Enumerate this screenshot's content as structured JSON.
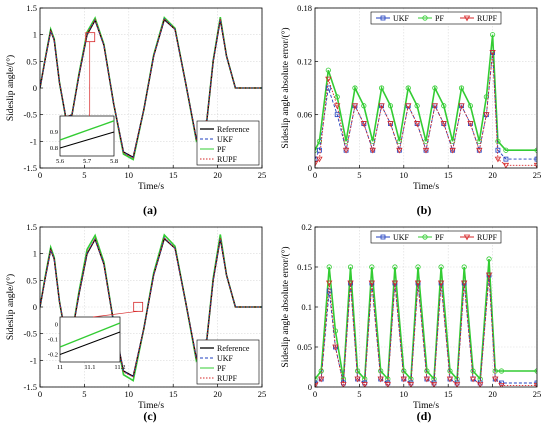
{
  "chart_data": [
    {
      "panel_label": "(a)",
      "type": "line",
      "xlabel": "Time/s",
      "ylabel": "Sideslip angle/(°)",
      "xlim": [
        0,
        25
      ],
      "ylim": [
        -1.5,
        1.5
      ],
      "xticks": [
        "0",
        "5",
        "10",
        "15",
        "20",
        "25"
      ],
      "yticks": [
        "-1.5",
        "-1",
        "-0.5",
        "0",
        "0.5",
        "1",
        "1.5"
      ],
      "legend": {
        "placement": "bottom-right",
        "entries": [
          "Reference",
          "UKF",
          "PF",
          "RUPF"
        ]
      },
      "series": [
        {
          "name": "Reference",
          "color": "#000000",
          "x": [
            0,
            0.6,
            1.2,
            1.6,
            2.2,
            2.9,
            3.6,
            4.4,
            5.3,
            6.2,
            7.2,
            8.3,
            9.4,
            10.5,
            11.7,
            12.8,
            14.0,
            15.2,
            16.4,
            17.6,
            18.8,
            19.5,
            20.3,
            21.0,
            22.0,
            25.0
          ],
          "y": [
            0,
            0.55,
            1.07,
            0.9,
            0.1,
            -0.55,
            -0.5,
            0.25,
            1.0,
            1.27,
            0.8,
            -0.3,
            -1.2,
            -1.3,
            -0.4,
            0.6,
            1.28,
            1.1,
            0.1,
            -0.95,
            -0.6,
            0.5,
            1.28,
            0.6,
            0,
            0
          ]
        },
        {
          "name": "UKF",
          "color": "#1f3fbf",
          "x": [
            0,
            0.6,
            1.2,
            1.6,
            2.2,
            2.9,
            3.6,
            4.4,
            5.3,
            6.2,
            7.2,
            8.3,
            9.4,
            10.5,
            11.7,
            12.8,
            14.0,
            15.2,
            16.4,
            17.6,
            18.8,
            19.5,
            20.3,
            21.0,
            22.0,
            25.0
          ],
          "y": [
            0,
            0.55,
            1.08,
            0.9,
            0.1,
            -0.55,
            -0.5,
            0.26,
            1.02,
            1.28,
            0.8,
            -0.3,
            -1.21,
            -1.31,
            -0.4,
            0.6,
            1.3,
            1.1,
            0.1,
            -0.96,
            -0.6,
            0.5,
            1.3,
            0.6,
            0,
            0
          ]
        },
        {
          "name": "PF",
          "color": "#33cc33",
          "x": [
            0,
            0.6,
            1.2,
            1.6,
            2.2,
            2.9,
            3.6,
            4.4,
            5.3,
            6.2,
            7.2,
            8.3,
            9.4,
            10.5,
            11.7,
            12.8,
            14.0,
            15.2,
            16.4,
            17.6,
            18.8,
            19.5,
            20.3,
            21.0,
            22.0,
            25.0
          ],
          "y": [
            0,
            0.56,
            1.1,
            0.92,
            0.1,
            -0.56,
            -0.5,
            0.28,
            1.05,
            1.31,
            0.82,
            -0.3,
            -1.24,
            -1.34,
            -0.4,
            0.62,
            1.32,
            1.12,
            0.1,
            -0.98,
            -0.6,
            0.52,
            1.33,
            0.6,
            0,
            0
          ]
        },
        {
          "name": "RUPF",
          "color": "#d62728",
          "x": [
            0,
            0.6,
            1.2,
            1.6,
            2.2,
            2.9,
            3.6,
            4.4,
            5.3,
            6.2,
            7.2,
            8.3,
            9.4,
            10.5,
            11.7,
            12.8,
            14.0,
            15.2,
            16.4,
            17.6,
            18.8,
            19.5,
            20.3,
            21.0,
            22.0,
            25.0
          ],
          "y": [
            0,
            0.55,
            1.08,
            0.9,
            0.1,
            -0.55,
            -0.5,
            0.26,
            1.02,
            1.28,
            0.8,
            -0.3,
            -1.22,
            -1.31,
            -0.4,
            0.6,
            1.3,
            1.1,
            0.1,
            -0.96,
            -0.6,
            0.5,
            1.3,
            0.6,
            0,
            0
          ]
        }
      ],
      "inset": {
        "xlim": [
          5.6,
          5.8
        ],
        "ylim": [
          0.75,
          1.0
        ],
        "xticks": [
          "5.6",
          "5.7",
          "5.8"
        ],
        "yticks": [
          "0.8",
          "0.9"
        ],
        "series": [
          {
            "name": "Reference",
            "color": "#000000",
            "x": [
              5.6,
              5.8
            ],
            "y": [
              0.8,
              0.9
            ]
          },
          {
            "name": "PF",
            "color": "#33cc33",
            "x": [
              5.6,
              5.65,
              5.7,
              5.75,
              5.8
            ],
            "y": [
              0.85,
              0.88,
              0.91,
              0.94,
              0.97
            ]
          }
        ]
      }
    },
    {
      "panel_label": "(b)",
      "type": "line",
      "xlabel": "Time/s",
      "ylabel": "Sideslip angle absolute error/(°)",
      "xlim": [
        0,
        25
      ],
      "ylim": [
        0,
        0.18
      ],
      "xticks": [
        "0",
        "5",
        "10",
        "15",
        "20",
        "25"
      ],
      "yticks": [
        "0",
        "0.06",
        "0.12",
        "0.18"
      ],
      "legend": {
        "placement": "top",
        "entries": [
          "UKF",
          "PF",
          "RUPF"
        ]
      },
      "series": [
        {
          "name": "UKF",
          "color": "#1f3fbf",
          "x": [
            0,
            0.5,
            1.5,
            2.5,
            3.5,
            4.5,
            5.5,
            6.5,
            7.5,
            8.5,
            9.5,
            10.5,
            11.5,
            12.5,
            13.5,
            14.5,
            15.5,
            16.5,
            17.5,
            18.5,
            19.3,
            20.0,
            20.6,
            21.5,
            25.0
          ],
          "y": [
            0.01,
            0.02,
            0.09,
            0.06,
            0.02,
            0.07,
            0.05,
            0.02,
            0.07,
            0.05,
            0.02,
            0.07,
            0.05,
            0.02,
            0.07,
            0.05,
            0.02,
            0.07,
            0.05,
            0.02,
            0.06,
            0.13,
            0.02,
            0.01,
            0.01
          ]
        },
        {
          "name": "PF",
          "color": "#33cc33",
          "x": [
            0,
            0.5,
            1.5,
            2.5,
            3.5,
            4.5,
            5.5,
            6.5,
            7.5,
            8.5,
            9.5,
            10.5,
            11.5,
            12.5,
            13.5,
            14.5,
            15.5,
            16.5,
            17.5,
            18.5,
            19.3,
            20.0,
            20.6,
            21.5,
            25.0
          ],
          "y": [
            0.02,
            0.03,
            0.11,
            0.08,
            0.03,
            0.09,
            0.07,
            0.03,
            0.09,
            0.07,
            0.03,
            0.09,
            0.07,
            0.03,
            0.09,
            0.07,
            0.03,
            0.09,
            0.07,
            0.03,
            0.08,
            0.15,
            0.03,
            0.02,
            0.02
          ]
        },
        {
          "name": "RUPF",
          "color": "#d62728",
          "x": [
            0,
            0.5,
            1.5,
            2.5,
            3.5,
            4.5,
            5.5,
            6.5,
            7.5,
            8.5,
            9.5,
            10.5,
            11.5,
            12.5,
            13.5,
            14.5,
            15.5,
            16.5,
            17.5,
            18.5,
            19.3,
            20.0,
            20.6,
            21.5,
            25.0
          ],
          "y": [
            0.005,
            0.01,
            0.1,
            0.07,
            0.02,
            0.07,
            0.05,
            0.02,
            0.07,
            0.05,
            0.02,
            0.07,
            0.05,
            0.02,
            0.07,
            0.05,
            0.02,
            0.07,
            0.05,
            0.02,
            0.06,
            0.13,
            0.01,
            0.003,
            0.003
          ]
        }
      ]
    },
    {
      "panel_label": "(c)",
      "type": "line",
      "xlabel": "Time/s",
      "ylabel": "Sideslip angle/(°)",
      "xlim": [
        0,
        25
      ],
      "ylim": [
        -1.5,
        1.5
      ],
      "xticks": [
        "0",
        "5",
        "10",
        "15",
        "20",
        "25"
      ],
      "yticks": [
        "-1.5",
        "-1",
        "-0.5",
        "0",
        "0.5",
        "1",
        "1.5"
      ],
      "legend": {
        "placement": "bottom-right",
        "entries": [
          "Reference",
          "UKF",
          "PF",
          "RUPF"
        ]
      },
      "series": [
        {
          "name": "Reference",
          "color": "#000000",
          "x": [
            0,
            0.6,
            1.2,
            1.6,
            2.2,
            2.9,
            3.6,
            4.4,
            5.3,
            6.2,
            7.2,
            8.3,
            9.4,
            10.5,
            11.7,
            12.8,
            14.0,
            15.2,
            16.4,
            17.6,
            18.8,
            19.5,
            20.3,
            21.0,
            22.0,
            25.0
          ],
          "y": [
            0,
            0.55,
            1.07,
            0.9,
            0.1,
            -0.55,
            -0.5,
            0.25,
            1.0,
            1.27,
            0.8,
            -0.3,
            -1.2,
            -1.3,
            -0.4,
            0.6,
            1.28,
            1.1,
            0.1,
            -0.95,
            -0.6,
            0.5,
            1.28,
            0.6,
            0,
            0
          ]
        },
        {
          "name": "UKF",
          "color": "#1f3fbf",
          "x": [
            0,
            0.6,
            1.2,
            1.6,
            2.2,
            2.9,
            3.6,
            4.4,
            5.3,
            6.2,
            7.2,
            8.3,
            9.4,
            10.5,
            11.7,
            12.8,
            14.0,
            15.2,
            16.4,
            17.6,
            18.8,
            19.5,
            20.3,
            21.0,
            22.0,
            25.0
          ],
          "y": [
            0,
            0.55,
            1.08,
            0.9,
            0.1,
            -0.55,
            -0.5,
            0.26,
            1.02,
            1.28,
            0.8,
            -0.3,
            -1.21,
            -1.31,
            -0.4,
            0.6,
            1.3,
            1.1,
            0.1,
            -0.96,
            -0.6,
            0.5,
            1.3,
            0.6,
            0,
            0
          ]
        },
        {
          "name": "PF",
          "color": "#33cc33",
          "x": [
            0,
            0.6,
            1.2,
            1.6,
            2.2,
            2.9,
            3.6,
            4.4,
            5.3,
            6.2,
            7.2,
            8.3,
            9.4,
            10.5,
            11.7,
            12.8,
            14.0,
            15.2,
            16.4,
            17.6,
            18.8,
            19.5,
            20.3,
            21.0,
            22.0,
            25.0
          ],
          "y": [
            0,
            0.58,
            1.12,
            0.93,
            0.1,
            -0.58,
            -0.5,
            0.3,
            1.08,
            1.34,
            0.84,
            -0.3,
            -1.27,
            -1.38,
            -0.4,
            0.64,
            1.35,
            1.14,
            0.1,
            -1.0,
            -0.6,
            0.54,
            1.36,
            0.6,
            0,
            0
          ]
        },
        {
          "name": "RUPF",
          "color": "#d62728",
          "x": [
            0,
            0.6,
            1.2,
            1.6,
            2.2,
            2.9,
            3.6,
            4.4,
            5.3,
            6.2,
            7.2,
            8.3,
            9.4,
            10.5,
            11.7,
            12.8,
            14.0,
            15.2,
            16.4,
            17.6,
            18.8,
            19.5,
            20.3,
            21.0,
            22.0,
            25.0
          ],
          "y": [
            0,
            0.55,
            1.08,
            0.9,
            0.1,
            -0.55,
            -0.5,
            0.26,
            1.02,
            1.28,
            0.8,
            -0.3,
            -1.22,
            -1.31,
            -0.4,
            0.6,
            1.3,
            1.1,
            0.1,
            -0.96,
            -0.6,
            0.5,
            1.3,
            0.6,
            0,
            0
          ]
        }
      ],
      "inset": {
        "xlim": [
          11,
          11.2
        ],
        "ylim": [
          -0.25,
          0.05
        ],
        "xticks": [
          "11",
          "11.1",
          "11.2"
        ],
        "yticks": [
          "-0.2",
          "-0.1",
          "0"
        ],
        "series": [
          {
            "name": "Reference",
            "color": "#000000",
            "x": [
              11,
              11.2
            ],
            "y": [
              -0.2,
              -0.05
            ]
          },
          {
            "name": "PF",
            "color": "#33cc33",
            "x": [
              11,
              11.05,
              11.1,
              11.15,
              11.2
            ],
            "y": [
              -0.15,
              -0.11,
              -0.07,
              -0.03,
              0.01
            ]
          }
        ]
      }
    },
    {
      "panel_label": "(d)",
      "type": "line",
      "xlabel": "Time/s",
      "ylabel": "Sideslip angle absolute error/(°)",
      "xlim": [
        0,
        25
      ],
      "ylim": [
        0,
        0.2
      ],
      "xticks": [
        "0",
        "5",
        "10",
        "15",
        "20",
        "25"
      ],
      "yticks": [
        "0",
        "0.05",
        "0.1",
        "0.15",
        "0.2"
      ],
      "legend": {
        "placement": "top",
        "entries": [
          "UKF",
          "PF",
          "RUPF"
        ]
      },
      "series": [
        {
          "name": "UKF",
          "color": "#1f3fbf",
          "x": [
            0,
            0.7,
            1.6,
            2.3,
            3.2,
            4.0,
            4.8,
            5.6,
            6.4,
            7.4,
            8.2,
            9.0,
            10.0,
            10.8,
            11.6,
            12.6,
            13.4,
            14.2,
            15.2,
            16.0,
            16.8,
            17.8,
            18.6,
            19.6,
            20.3,
            21.0,
            25.0
          ],
          "y": [
            0.005,
            0.01,
            0.12,
            0.05,
            0.005,
            0.13,
            0.01,
            0.005,
            0.13,
            0.01,
            0.005,
            0.13,
            0.01,
            0.005,
            0.13,
            0.01,
            0.005,
            0.13,
            0.01,
            0.005,
            0.13,
            0.01,
            0.005,
            0.14,
            0.01,
            0.005,
            0.005
          ]
        },
        {
          "name": "PF",
          "color": "#33cc33",
          "x": [
            0,
            0.7,
            1.6,
            2.3,
            3.2,
            4.0,
            4.8,
            5.6,
            6.4,
            7.4,
            8.2,
            9.0,
            10.0,
            10.8,
            11.6,
            12.6,
            13.4,
            14.2,
            15.2,
            16.0,
            16.8,
            17.8,
            18.6,
            19.6,
            20.3,
            21.0,
            25.0
          ],
          "y": [
            0.01,
            0.02,
            0.15,
            0.07,
            0.01,
            0.15,
            0.02,
            0.01,
            0.15,
            0.02,
            0.01,
            0.15,
            0.02,
            0.01,
            0.15,
            0.02,
            0.01,
            0.15,
            0.02,
            0.01,
            0.15,
            0.02,
            0.01,
            0.16,
            0.02,
            0.02,
            0.02
          ]
        },
        {
          "name": "RUPF",
          "color": "#d62728",
          "x": [
            0,
            0.7,
            1.6,
            2.3,
            3.2,
            4.0,
            4.8,
            5.6,
            6.4,
            7.4,
            8.2,
            9.0,
            10.0,
            10.8,
            11.6,
            12.6,
            13.4,
            14.2,
            15.2,
            16.0,
            16.8,
            17.8,
            18.6,
            19.6,
            20.3,
            21.0,
            25.0
          ],
          "y": [
            0.002,
            0.01,
            0.13,
            0.05,
            0.003,
            0.13,
            0.01,
            0.003,
            0.13,
            0.01,
            0.003,
            0.13,
            0.01,
            0.003,
            0.13,
            0.01,
            0.003,
            0.13,
            0.01,
            0.003,
            0.13,
            0.01,
            0.003,
            0.14,
            0.01,
            0.002,
            0.002
          ]
        }
      ]
    }
  ]
}
